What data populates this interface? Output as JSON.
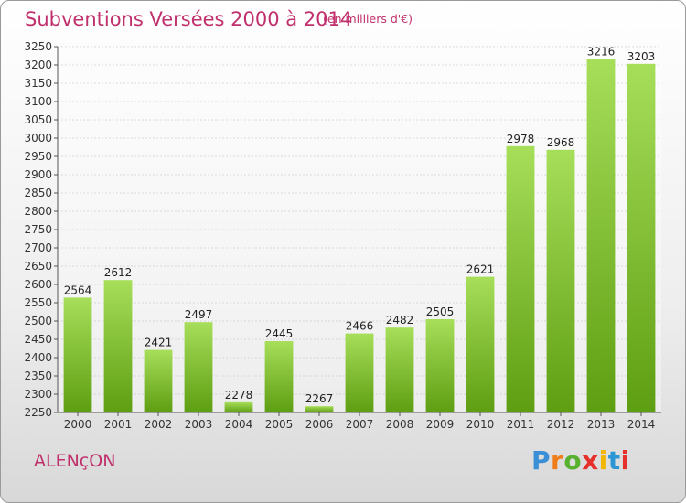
{
  "header": {
    "title": "Subventions Versées 2000 à 2014",
    "subtitle": "(en milliers d'€)"
  },
  "footer": {
    "location": "ALENçON",
    "brand": "Proxiti",
    "brand_colors": [
      "#3a8fd6",
      "#f07d1a",
      "#58b12e",
      "#e6302b",
      "#f2b705",
      "#2c95d3",
      "#e6302b"
    ]
  },
  "colors": {
    "title": "#c0306c",
    "bar_light": "#a7de5a",
    "bar_dark": "#5e9e12",
    "grid": "#bbbbbb"
  },
  "chart_data": {
    "type": "bar",
    "categories": [
      "2000",
      "2001",
      "2002",
      "2003",
      "2004",
      "2005",
      "2006",
      "2007",
      "2008",
      "2009",
      "2010",
      "2011",
      "2012",
      "2013",
      "2014"
    ],
    "values": [
      2564,
      2612,
      2421,
      2497,
      2278,
      2445,
      2267,
      2466,
      2482,
      2505,
      2621,
      2978,
      2968,
      3216,
      3203
    ],
    "ylim": [
      2250,
      3250
    ],
    "ytick_step": 50,
    "grid": true,
    "xlabel": "",
    "ylabel": ""
  }
}
